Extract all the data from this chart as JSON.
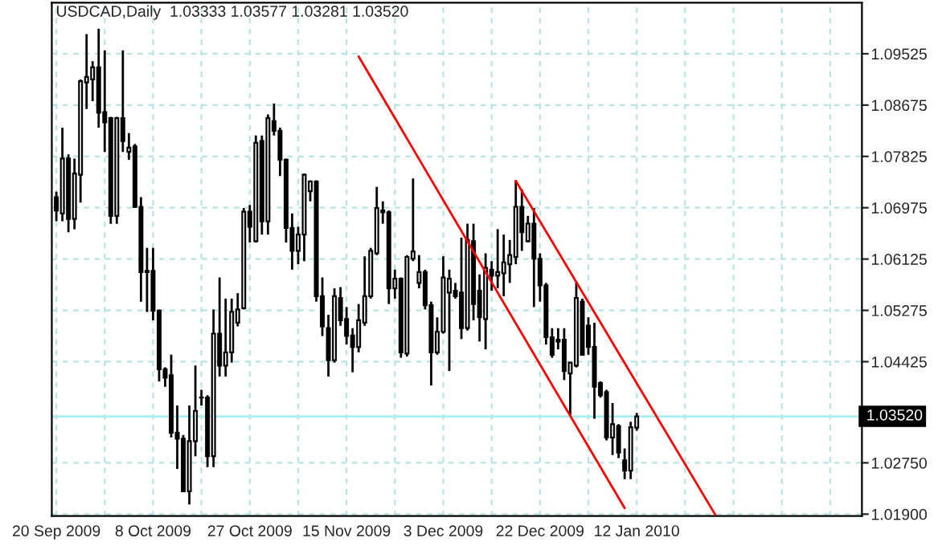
{
  "chart_data": {
    "type": "candlestick",
    "title": "USDCAD,Daily  1.03333 1.03577 1.03281 1.03520",
    "categories": [
      "20 Sep 2009",
      null,
      null,
      null,
      null,
      null,
      null,
      null,
      null,
      null,
      null,
      null,
      null,
      null,
      null,
      null,
      "8 Oct 2009",
      null,
      null,
      null,
      null,
      null,
      null,
      null,
      null,
      null,
      null,
      null,
      null,
      null,
      null,
      null,
      "27 Oct 2009",
      null,
      null,
      null,
      null,
      null,
      null,
      null,
      null,
      null,
      null,
      null,
      null,
      null,
      null,
      null,
      "15 Nov 2009",
      null,
      null,
      null,
      null,
      null,
      null,
      null,
      null,
      null,
      null,
      null,
      null,
      null,
      null,
      null,
      "3 Dec 2009",
      null,
      null,
      null,
      null,
      null,
      null,
      null,
      null,
      null,
      null,
      null,
      null,
      null,
      null,
      null,
      "22 Dec 2009",
      null,
      null,
      null,
      null,
      null,
      null,
      null,
      null,
      null,
      null,
      null,
      null,
      null,
      null,
      null,
      "12 Jan 2010",
      null,
      null,
      null,
      null,
      null,
      null,
      null,
      null,
      null,
      null,
      null,
      null,
      null,
      null,
      null,
      null,
      null,
      null,
      null,
      null,
      null,
      null,
      null,
      null,
      null,
      null,
      null,
      null,
      null,
      null,
      null,
      null,
      null,
      null,
      null,
      null,
      null
    ],
    "ohlc": [
      [
        1.0715,
        1.0724,
        1.0675,
        1.0693
      ],
      [
        1.0688,
        1.083,
        1.0675,
        1.0779
      ],
      [
        1.0779,
        1.0786,
        1.0657,
        1.0679
      ],
      [
        1.0679,
        1.0779,
        1.0662,
        1.0754
      ],
      [
        1.0752,
        1.091,
        1.0706,
        1.0907
      ],
      [
        1.0905,
        1.0985,
        1.0861,
        1.0914
      ],
      [
        1.091,
        1.094,
        1.0874,
        1.093
      ],
      [
        1.093,
        1.0994,
        1.083,
        1.0855
      ],
      [
        1.0856,
        1.0958,
        1.079,
        1.0839
      ],
      [
        1.0846,
        1.0848,
        1.0671,
        1.0684
      ],
      [
        1.0684,
        1.0848,
        1.0671,
        1.0846
      ],
      [
        1.0846,
        1.0958,
        1.079,
        1.0808
      ],
      [
        1.079,
        1.0821,
        1.0777,
        1.0797
      ],
      [
        1.0799,
        1.0803,
        1.0697,
        1.0699
      ],
      [
        1.0699,
        1.0715,
        1.0542,
        1.0591
      ],
      [
        1.0593,
        1.0631,
        1.0525,
        1.0591
      ],
      [
        1.0593,
        1.0631,
        1.0511,
        1.0527
      ],
      [
        1.0527,
        1.0529,
        1.041,
        1.043
      ],
      [
        1.043,
        1.0433,
        1.0401,
        1.0416
      ],
      [
        1.042,
        1.0454,
        1.0317,
        1.0325
      ],
      [
        1.0325,
        1.037,
        1.0265,
        1.0315
      ],
      [
        1.0315,
        1.0321,
        1.0228,
        1.0228
      ],
      [
        1.0228,
        1.037,
        1.0206,
        1.0311
      ],
      [
        1.0311,
        1.0436,
        1.0286,
        1.0361
      ],
      [
        1.0383,
        1.0396,
        1.037,
        1.0383
      ],
      [
        1.0383,
        1.0387,
        1.0268,
        1.0286
      ],
      [
        1.0286,
        1.0529,
        1.0268,
        1.0489
      ],
      [
        1.0489,
        1.0582,
        1.0418,
        1.0436
      ],
      [
        1.0436,
        1.0547,
        1.0418,
        1.0458
      ],
      [
        1.0458,
        1.0547,
        1.0441,
        1.0525
      ],
      [
        1.0507,
        1.0556,
        1.0501,
        1.0529
      ],
      [
        1.0531,
        1.0697,
        1.0529,
        1.0691
      ],
      [
        1.0691,
        1.0702,
        1.064,
        1.0666
      ],
      [
        1.0642,
        1.0817,
        1.064,
        1.0805
      ],
      [
        1.0808,
        1.0817,
        1.0653,
        1.0675
      ],
      [
        1.0675,
        1.0852,
        1.0653,
        1.0846
      ],
      [
        1.0841,
        1.087,
        1.0817,
        1.0825
      ],
      [
        1.0825,
        1.083,
        1.075,
        1.0777
      ],
      [
        1.0777,
        1.0779,
        1.064,
        1.0664
      ],
      [
        1.0664,
        1.0688,
        1.0595,
        1.0626
      ],
      [
        1.0626,
        1.0666,
        1.0604,
        1.0653
      ],
      [
        1.0653,
        1.0754,
        1.0609,
        1.0752
      ],
      [
        1.0725,
        1.0743,
        1.0708,
        1.0741
      ],
      [
        1.0741,
        1.0743,
        1.0542,
        1.0551
      ],
      [
        1.0551,
        1.0582,
        1.0485,
        1.0501
      ],
      [
        1.0498,
        1.052,
        1.0418,
        1.0445
      ],
      [
        1.0445,
        1.0564,
        1.0441,
        1.0551
      ],
      [
        1.0548,
        1.0566,
        1.0502,
        1.0511
      ],
      [
        1.0513,
        1.0533,
        1.0471,
        1.0485
      ],
      [
        1.0486,
        1.0498,
        1.0425,
        1.0467
      ],
      [
        1.0467,
        1.0538,
        1.0458,
        1.0511
      ],
      [
        1.0507,
        1.0617,
        1.0502,
        1.0551
      ],
      [
        1.0551,
        1.0631,
        1.0547,
        1.0626
      ],
      [
        1.0622,
        1.0732,
        1.0619,
        1.0697
      ],
      [
        1.0693,
        1.0708,
        1.0671,
        1.069
      ],
      [
        1.069,
        1.0693,
        1.0538,
        1.0564
      ],
      [
        1.0564,
        1.0595,
        1.0547,
        1.058
      ],
      [
        1.058,
        1.0582,
        1.0449,
        1.0458
      ],
      [
        1.0456,
        1.0619,
        1.0451,
        1.0616
      ],
      [
        1.0613,
        1.0746,
        1.0609,
        1.0625
      ],
      [
        1.0573,
        1.0619,
        1.0564,
        1.0591
      ],
      [
        1.0591,
        1.0595,
        1.0529,
        1.0536
      ],
      [
        1.0536,
        1.0542,
        1.0403,
        1.0458
      ],
      [
        1.0458,
        1.0516,
        1.0454,
        1.0492
      ],
      [
        1.0492,
        1.0617,
        1.0489,
        1.0582
      ],
      [
        1.0557,
        1.0595,
        1.0427,
        1.058
      ],
      [
        1.056,
        1.0573,
        1.0547,
        1.0551
      ],
      [
        1.0557,
        1.0648,
        1.048,
        1.0498
      ],
      [
        1.0498,
        1.0671,
        1.0494,
        1.0644
      ],
      [
        1.0642,
        1.0671,
        1.0511,
        1.0538
      ],
      [
        1.056,
        1.0587,
        1.0476,
        1.0516
      ],
      [
        1.0513,
        1.0622,
        1.0463,
        1.0598
      ],
      [
        1.0595,
        1.0609,
        1.056,
        1.0585
      ],
      [
        1.0585,
        1.0662,
        1.0564,
        1.0591
      ],
      [
        1.0589,
        1.0653,
        1.0551,
        1.0607
      ],
      [
        1.0604,
        1.0644,
        1.0573,
        1.0619
      ],
      [
        1.0616,
        1.0743,
        1.0604,
        1.0699
      ],
      [
        1.0699,
        1.0728,
        1.0626,
        1.0657
      ],
      [
        1.0642,
        1.0684,
        1.064,
        1.0671
      ],
      [
        1.0671,
        1.0697,
        1.0533,
        1.0613
      ],
      [
        1.0613,
        1.0622,
        1.0542,
        1.0569
      ],
      [
        1.0569,
        1.0573,
        1.0471,
        1.0483
      ],
      [
        1.0483,
        1.0498,
        1.0449,
        1.0454
      ],
      [
        1.0479,
        1.0498,
        1.0463,
        1.0476
      ],
      [
        1.0479,
        1.0498,
        1.0412,
        1.0427
      ],
      [
        1.0423,
        1.0442,
        1.0354,
        1.0441
      ],
      [
        1.0436,
        1.0575,
        1.0433,
        1.0548
      ],
      [
        1.0542,
        1.0547,
        1.0454,
        1.0454
      ],
      [
        1.0502,
        1.0516,
        1.0454,
        1.0467
      ],
      [
        1.0467,
        1.0507,
        1.0348,
        1.0401
      ],
      [
        1.0407,
        1.041,
        1.0383,
        1.0387
      ],
      [
        1.0392,
        1.0396,
        1.0312,
        1.0317
      ],
      [
        1.0317,
        1.0374,
        1.0288,
        1.0339
      ],
      [
        1.0336,
        1.0339,
        1.0283,
        1.0292
      ],
      [
        1.0279,
        1.0299,
        1.0248,
        1.0262
      ],
      [
        1.0262,
        1.0343,
        1.0248,
        1.0334
      ],
      [
        1.03333,
        1.03577,
        1.03281,
        1.0352
      ],
      null,
      null,
      null,
      null,
      null,
      null,
      null,
      null,
      null,
      null,
      null,
      null,
      null,
      null,
      null,
      null,
      null,
      null,
      null,
      null,
      null,
      null,
      null,
      null,
      null,
      null,
      null,
      null,
      null,
      null,
      null,
      null,
      null,
      null,
      null,
      null,
      null
    ],
    "series": [
      {
        "type": "line",
        "color": "#ff0000",
        "values": [
          null,
          null,
          null,
          null,
          null,
          null,
          null,
          null,
          null,
          null,
          null,
          null,
          null,
          null,
          null,
          null,
          null,
          null,
          null,
          null,
          null,
          null,
          null,
          null,
          null,
          null,
          null,
          null,
          null,
          null,
          null,
          null,
          null,
          null,
          null,
          null,
          null,
          null,
          null,
          null,
          null,
          null,
          null,
          null,
          null,
          null,
          null,
          null,
          null,
          null,
          1.0948,
          null,
          null,
          null,
          null,
          null,
          null,
          null,
          null,
          null,
          null,
          null,
          null,
          null,
          null,
          null,
          null,
          null,
          null,
          null,
          null,
          null,
          null,
          null,
          null,
          null,
          null,
          null,
          null,
          null,
          null,
          null,
          null,
          null,
          null,
          null,
          null,
          null,
          null,
          null,
          null,
          null,
          null,
          null,
          1.02,
          null,
          null,
          null,
          null,
          null,
          null,
          null,
          null,
          null,
          null,
          null,
          null,
          null,
          null,
          null,
          null,
          null,
          null,
          null,
          null,
          null,
          null,
          null,
          null,
          null,
          null,
          null,
          null,
          null,
          null,
          null,
          null,
          null,
          null,
          null,
          null,
          null,
          null,
          null
        ]
      },
      {
        "type": "line",
        "color": "#ff0000",
        "values": [
          null,
          null,
          null,
          null,
          null,
          null,
          null,
          null,
          null,
          null,
          null,
          null,
          null,
          null,
          null,
          null,
          null,
          null,
          null,
          null,
          null,
          null,
          null,
          null,
          null,
          null,
          null,
          null,
          null,
          null,
          null,
          null,
          null,
          null,
          null,
          null,
          null,
          null,
          null,
          null,
          null,
          null,
          null,
          null,
          null,
          null,
          null,
          null,
          null,
          null,
          null,
          null,
          null,
          null,
          null,
          null,
          null,
          null,
          null,
          null,
          null,
          null,
          null,
          null,
          null,
          null,
          null,
          null,
          null,
          null,
          null,
          null,
          null,
          null,
          null,
          null,
          1.0742,
          null,
          null,
          null,
          null,
          null,
          null,
          null,
          null,
          null,
          null,
          null,
          null,
          null,
          null,
          null,
          null,
          null,
          null,
          null,
          null,
          null,
          null,
          null,
          null,
          null,
          null,
          null,
          null,
          null,
          null,
          null,
          null,
          1.0189,
          null,
          null,
          null,
          null,
          null,
          null,
          null,
          null,
          null,
          null,
          null,
          null,
          null,
          null,
          null,
          null,
          null,
          null,
          null,
          null,
          null,
          null,
          null,
          null
        ]
      }
    ],
    "ylim": [
      1.0187,
      1.1037
    ],
    "yticks": [
      {
        "value": 1.019,
        "label": "1.01900"
      },
      {
        "value": 1.0275,
        "label": "1.02750"
      },
      1.04425,
      1.05275,
      1.06125,
      1.06975,
      1.07825,
      1.08675,
      1.09525
    ],
    "ref_lines": [
      {
        "axis": "y",
        "value": 1.0352,
        "label": "1.03520",
        "color": "#a8f0f0"
      }
    ],
    "grid": true,
    "legend": false
  }
}
